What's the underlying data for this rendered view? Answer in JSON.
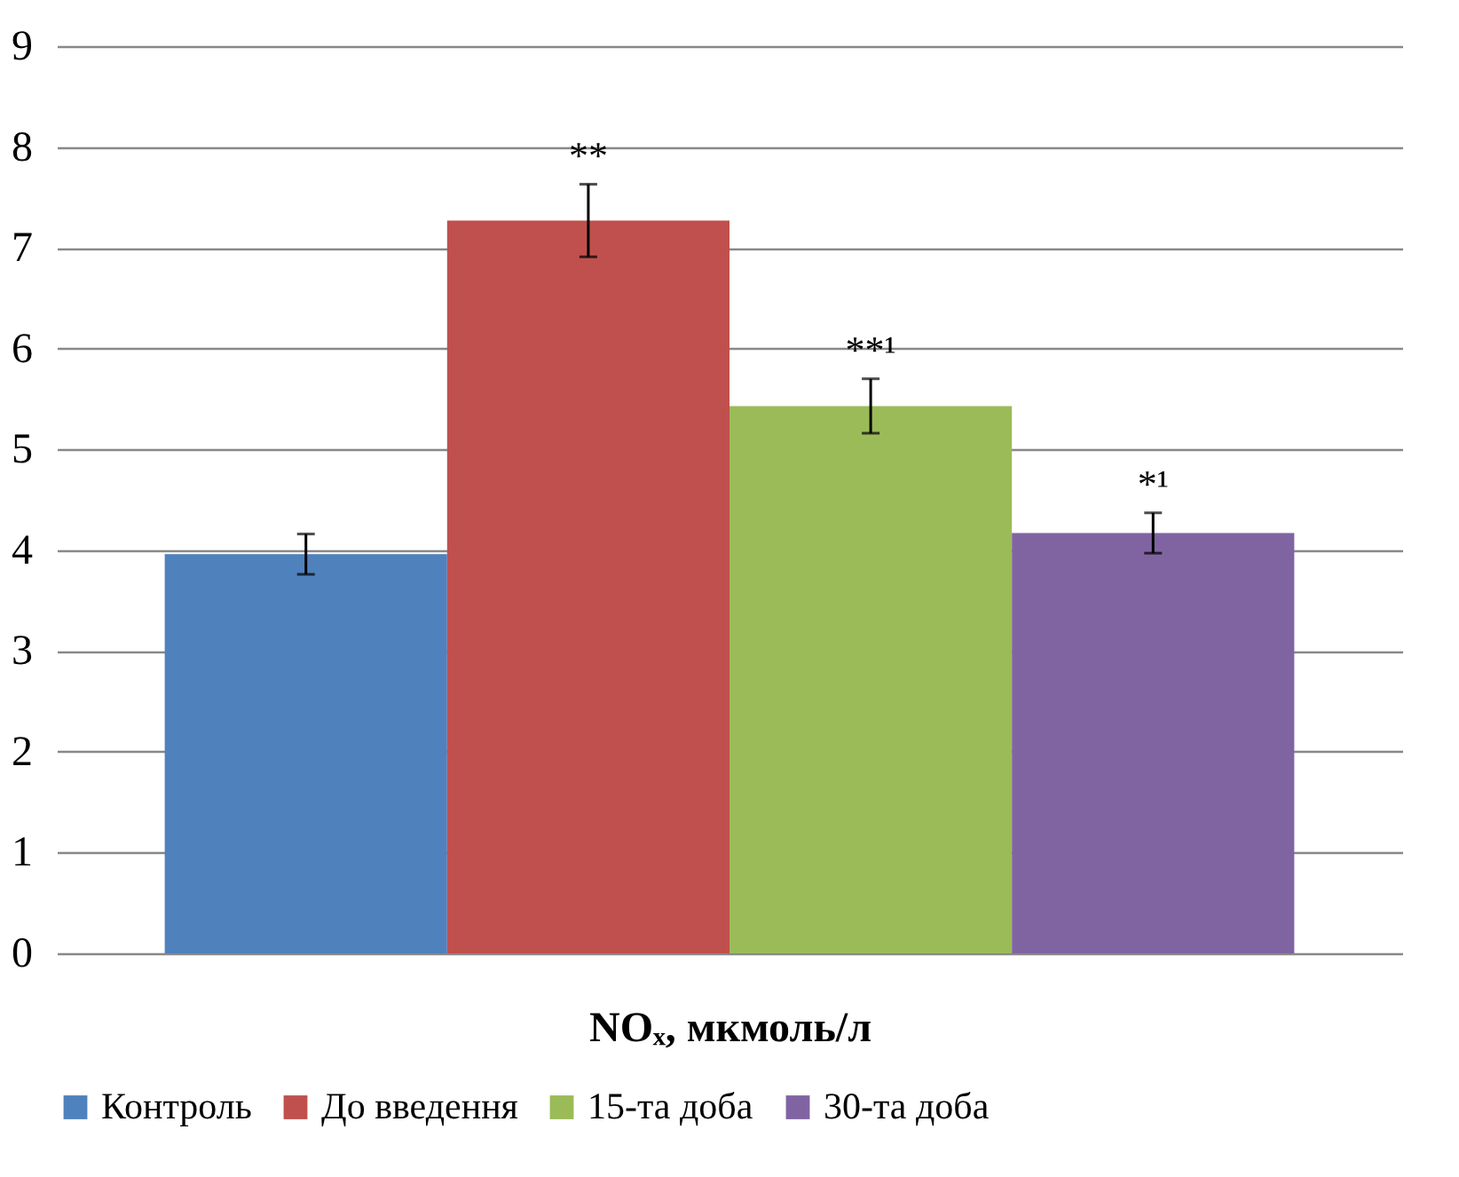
{
  "chart_data": {
    "type": "bar",
    "xlabel": "NOₓ, мкмоль/л",
    "categories": [
      null
    ],
    "series": [
      {
        "name": "Контроль",
        "color": "#4f81bd",
        "values": [
          3.96
        ],
        "errors": [
          0.2
        ]
      },
      {
        "name": "До введення",
        "color": "#c0504d",
        "values": [
          7.27
        ],
        "errors": [
          0.36
        ]
      },
      {
        "name": "15-та доба",
        "color": "#9bbb59",
        "values": [
          5.43
        ],
        "errors": [
          0.27
        ]
      },
      {
        "name": "30-та доба",
        "color": "#8064a2",
        "values": [
          4.17
        ],
        "errors": [
          0.2
        ]
      }
    ],
    "annotations": [
      "**",
      "**¹",
      "*¹"
    ],
    "ylim": [
      0,
      9
    ],
    "yticks": [
      0,
      1,
      2,
      3,
      4,
      5,
      6,
      7,
      8,
      9
    ],
    "grid": "y",
    "legend": "bottom"
  }
}
